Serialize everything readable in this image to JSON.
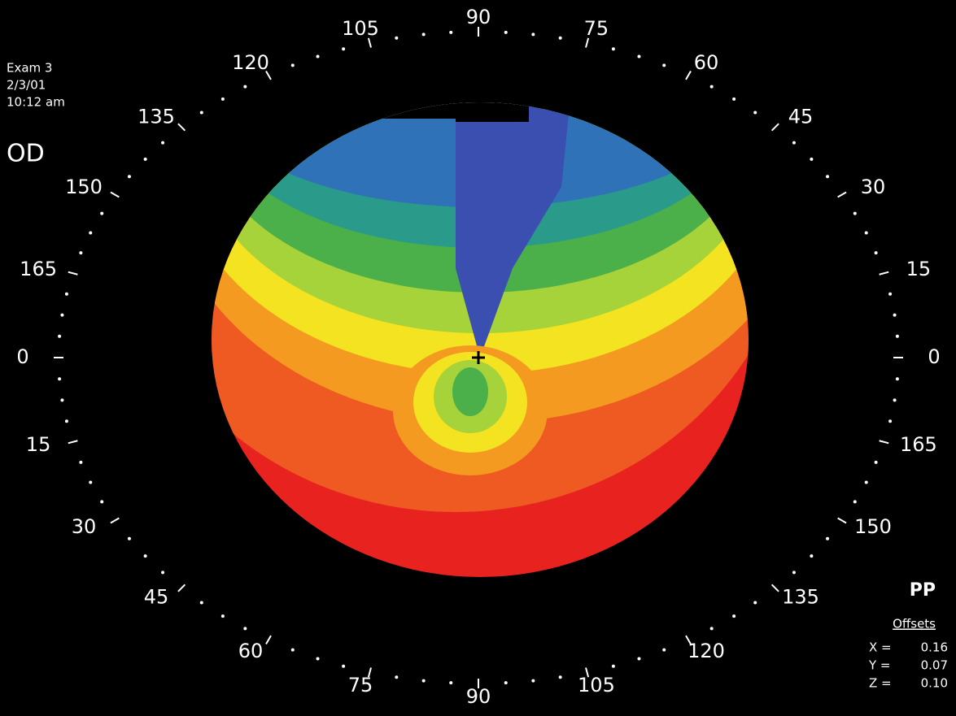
{
  "header": {
    "exam": "Exam 3",
    "date": "2/3/01",
    "time": "10:12 am",
    "eye": "OD"
  },
  "ring_labels": [
    90,
    75,
    60,
    45,
    30,
    15,
    0,
    165,
    150,
    135,
    120,
    105,
    90,
    75,
    60,
    45,
    30,
    15,
    0,
    165,
    150,
    135,
    120,
    105
  ],
  "mode": "PP",
  "offsets": {
    "title": "Offsets",
    "rows": [
      {
        "label": "X =",
        "value": "0.16"
      },
      {
        "label": "Y =",
        "value": "0.07"
      },
      {
        "label": "Z =",
        "value": "0.10"
      }
    ]
  }
}
